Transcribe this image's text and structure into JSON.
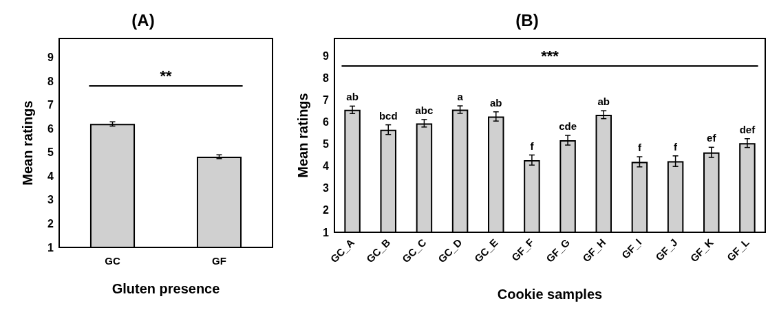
{
  "chart_data": [
    {
      "type": "bar",
      "title": "(A)",
      "xlabel": "Gluten presence",
      "ylabel": "Mean ratings",
      "categories": [
        "GC",
        "GF"
      ],
      "values": [
        6.2,
        4.82
      ],
      "errors": [
        0.09,
        0.08
      ],
      "color": "#d0d0d0",
      "ylim": [
        1,
        9.8
      ],
      "yticks": [
        1,
        2,
        3,
        4,
        5,
        6,
        7,
        8,
        9
      ],
      "grid": false,
      "ref_lines": [
        {
          "axis": "y",
          "value": 7.8,
          "label": "**"
        }
      ]
    },
    {
      "type": "bar",
      "title": "(B)",
      "xlabel": "Cookie samples",
      "ylabel": "Mean ratings",
      "categories": [
        "GC_A",
        "GC_B",
        "GC_C",
        "GC_D",
        "GC_E",
        "GF_F",
        "GF_G",
        "GF_H",
        "GF_I",
        "GF_J",
        "GF_K",
        "GF_L"
      ],
      "values": [
        6.56,
        5.66,
        5.95,
        6.57,
        6.26,
        4.28,
        5.18,
        6.34,
        4.2,
        4.23,
        4.63,
        5.05
      ],
      "errors": [
        0.17,
        0.22,
        0.17,
        0.17,
        0.21,
        0.23,
        0.22,
        0.18,
        0.23,
        0.24,
        0.23,
        0.2
      ],
      "value_labels": [
        "ab",
        "bcd",
        "abc",
        "a",
        "ab",
        "f",
        "cde",
        "ab",
        "f",
        "f",
        "ef",
        "def"
      ],
      "color": "#d0d0d0",
      "ylim": [
        1,
        9.8
      ],
      "yticks": [
        1,
        2,
        3,
        4,
        5,
        6,
        7,
        8,
        9
      ],
      "grid": false,
      "ref_lines": [
        {
          "axis": "y",
          "value": 8.55,
          "label": "***"
        }
      ]
    }
  ]
}
